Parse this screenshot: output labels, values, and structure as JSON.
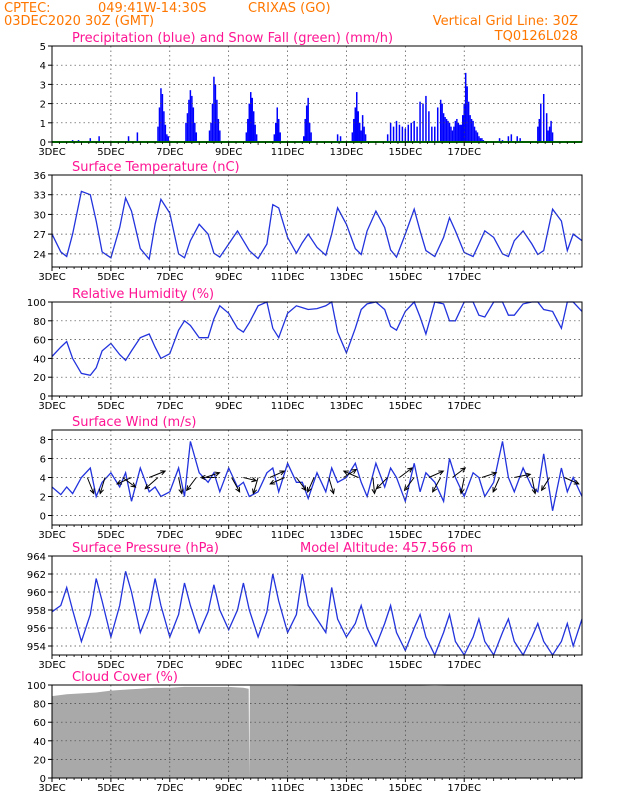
{
  "header": {
    "source": "CPTEC:",
    "coords": "049:41W-14:30S",
    "station": "CRIXAS (GO)",
    "run": "03DEC2020 30Z (GMT)",
    "grid_note": "Vertical Grid Line: 30Z",
    "model_id": "TQ0126L028"
  },
  "colors": {
    "header": "#ff7700",
    "panel_title": "#ff1493",
    "precip": "#0000ff",
    "snow": "#00bb00",
    "line": "#2233dd",
    "cloud": "#a9a9a9"
  },
  "x_ticks": [
    "3DEC",
    "5DEC",
    "7DEC",
    "9DEC",
    "11DEC",
    "13DEC",
    "15DEC",
    "17DEC"
  ],
  "chart_data": [
    {
      "id": "precip",
      "type": "bar",
      "title": "Precipitation (blue) and Snow Fall (green) (mm/h)",
      "ylim": [
        0,
        5
      ],
      "yticks": [
        0,
        1,
        2,
        3,
        4,
        5
      ],
      "x_unit": "days since 03DEC2020 30Z",
      "x": [
        0.7,
        0.9,
        1.3,
        1.6,
        2.6,
        2.9,
        3.6,
        3.65,
        3.7,
        3.75,
        3.8,
        3.85,
        3.9,
        3.95,
        4.55,
        4.6,
        4.65,
        4.7,
        4.75,
        4.8,
        4.85,
        4.9,
        5.35,
        5.4,
        5.45,
        5.5,
        5.55,
        5.6,
        5.65,
        5.7,
        6.6,
        6.65,
        6.7,
        6.75,
        6.8,
        6.85,
        6.9,
        6.95,
        7.55,
        7.6,
        7.65,
        7.7,
        7.75,
        8.55,
        8.6,
        8.65,
        8.7,
        8.75,
        8.8,
        9.7,
        9.8,
        10.2,
        10.25,
        10.3,
        10.35,
        10.4,
        10.45,
        10.5,
        10.55,
        10.6,
        10.65,
        11.4,
        11.5,
        11.6,
        11.7,
        11.8,
        11.9,
        12.0,
        12.1,
        12.2,
        12.3,
        12.4,
        12.5,
        12.6,
        12.7,
        12.8,
        12.9,
        13.0,
        13.1,
        13.2,
        13.25,
        13.3,
        13.35,
        13.4,
        13.45,
        13.5,
        13.55,
        13.6,
        13.65,
        13.7,
        13.75,
        13.8,
        13.85,
        13.9,
        13.95,
        14.0,
        14.05,
        14.1,
        14.15,
        14.2,
        14.25,
        14.3,
        14.35,
        14.4,
        14.45,
        14.5,
        14.55,
        14.6,
        14.65,
        15.2,
        15.3,
        15.5,
        15.6,
        15.8,
        15.9,
        16.5,
        16.55,
        16.6,
        16.7,
        16.8,
        16.85,
        16.9,
        16.95,
        17.0
      ],
      "values": [
        0.1,
        0.1,
        0.2,
        0.3,
        0.3,
        0.5,
        0.8,
        1.8,
        2.8,
        2.5,
        1.6,
        0.9,
        0.4,
        0.3,
        1.0,
        1.5,
        2.2,
        2.7,
        2.4,
        1.8,
        1.0,
        0.5,
        0.6,
        1.0,
        2.0,
        3.4,
        3.0,
        2.2,
        1.2,
        0.6,
        0.5,
        1.2,
        2.0,
        2.6,
        2.3,
        1.6,
        0.9,
        0.4,
        0.4,
        1.0,
        1.8,
        1.2,
        0.5,
        0.3,
        1.2,
        1.9,
        2.3,
        1.0,
        0.5,
        0.4,
        0.3,
        0.5,
        1.2,
        1.8,
        2.6,
        1.6,
        1.0,
        0.6,
        1.4,
        0.8,
        0.4,
        0.4,
        1.0,
        0.8,
        1.1,
        0.9,
        0.8,
        0.7,
        0.9,
        1.0,
        1.1,
        0.8,
        2.1,
        2.0,
        2.4,
        1.6,
        0.8,
        0.8,
        1.8,
        2.2,
        2.0,
        1.5,
        1.3,
        1.2,
        1.1,
        1.0,
        0.8,
        0.6,
        0.8,
        1.1,
        1.2,
        1.0,
        0.9,
        0.9,
        1.4,
        2.0,
        3.6,
        2.9,
        2.1,
        1.4,
        1.2,
        1.1,
        0.8,
        0.6,
        0.5,
        0.3,
        0.2,
        0.2,
        0.1,
        0.2,
        0.1,
        0.3,
        0.4,
        0.3,
        0.2,
        0.8,
        1.2,
        2.0,
        2.5,
        1.5,
        0.6,
        0.8,
        1.1,
        0.5
      ],
      "snow": 0
    },
    {
      "id": "temp",
      "type": "line",
      "title": "Surface Temperature (nC)",
      "ylim": [
        22,
        36
      ],
      "yticks": [
        24,
        27,
        30,
        33,
        36
      ],
      "x": [
        0.0,
        0.3,
        0.5,
        0.7,
        1.0,
        1.3,
        1.5,
        1.7,
        2.0,
        2.3,
        2.5,
        2.7,
        3.0,
        3.3,
        3.5,
        3.7,
        4.0,
        4.3,
        4.5,
        4.7,
        5.0,
        5.3,
        5.5,
        5.7,
        6.0,
        6.3,
        6.5,
        6.7,
        7.0,
        7.3,
        7.5,
        7.7,
        8.0,
        8.3,
        8.5,
        8.7,
        9.0,
        9.3,
        9.5,
        9.7,
        10.0,
        10.3,
        10.5,
        10.7,
        11.0,
        11.3,
        11.5,
        11.7,
        12.0,
        12.3,
        12.5,
        12.7,
        13.0,
        13.3,
        13.5,
        13.7,
        14.0,
        14.3,
        14.5,
        14.7,
        15.0,
        15.3,
        15.5,
        15.7,
        16.0,
        16.3,
        16.5,
        16.7,
        17.0,
        17.3,
        17.5,
        17.7,
        18.0
      ],
      "y": [
        27.0,
        24.3,
        23.6,
        27.0,
        33.5,
        33.0,
        29.0,
        24.3,
        23.4,
        28.0,
        32.5,
        30.5,
        24.8,
        23.2,
        28.5,
        32.3,
        30.2,
        24.0,
        23.4,
        26.0,
        28.5,
        27.0,
        24.1,
        23.5,
        25.5,
        27.5,
        26.0,
        24.5,
        23.3,
        25.5,
        31.5,
        31.0,
        26.5,
        24.1,
        25.7,
        27.0,
        25.0,
        23.8,
        27.0,
        31.0,
        28.5,
        24.8,
        23.9,
        27.5,
        30.5,
        28.0,
        24.6,
        23.5,
        27.0,
        30.8,
        27.5,
        24.5,
        23.6,
        26.5,
        29.5,
        27.5,
        24.2,
        23.6,
        25.5,
        27.5,
        26.5,
        24.0,
        23.6,
        26.0,
        27.5,
        25.5,
        23.9,
        24.5,
        30.8,
        29.0,
        24.5,
        27.0,
        26.0
      ]
    },
    {
      "id": "rh",
      "type": "line",
      "title": "Relative Humidity (%)",
      "ylim": [
        0,
        100
      ],
      "yticks": [
        0,
        20,
        40,
        60,
        80,
        100
      ],
      "x": [
        0.0,
        0.3,
        0.5,
        0.7,
        1.0,
        1.3,
        1.5,
        1.7,
        2.0,
        2.3,
        2.5,
        2.7,
        3.0,
        3.3,
        3.5,
        3.7,
        4.0,
        4.3,
        4.5,
        4.7,
        5.0,
        5.3,
        5.5,
        5.7,
        6.0,
        6.3,
        6.5,
        6.7,
        7.0,
        7.3,
        7.5,
        7.7,
        8.0,
        8.3,
        8.5,
        8.7,
        9.0,
        9.3,
        9.5,
        9.7,
        10.0,
        10.3,
        10.5,
        10.7,
        11.0,
        11.3,
        11.5,
        11.7,
        12.0,
        12.3,
        12.5,
        12.7,
        13.0,
        13.3,
        13.5,
        13.7,
        14.0,
        14.3,
        14.5,
        14.7,
        15.0,
        15.3,
        15.5,
        15.7,
        16.0,
        16.3,
        16.5,
        16.7,
        17.0,
        17.3,
        17.5,
        17.7,
        18.0
      ],
      "y": [
        42,
        52,
        58,
        40,
        24,
        22,
        30,
        48,
        56,
        44,
        38,
        48,
        62,
        66,
        52,
        40,
        45,
        70,
        80,
        75,
        62,
        62,
        82,
        96,
        88,
        72,
        68,
        78,
        96,
        100,
        72,
        62,
        88,
        96,
        94,
        92,
        93,
        96,
        100,
        68,
        46,
        72,
        92,
        98,
        100,
        92,
        74,
        70,
        90,
        100,
        84,
        66,
        100,
        98,
        80,
        80,
        100,
        100,
        86,
        84,
        100,
        100,
        86,
        86,
        98,
        100,
        100,
        92,
        90,
        72,
        100,
        100,
        90
      ]
    },
    {
      "id": "wind",
      "type": "line",
      "title": "Surface Wind (m/s)",
      "ylim": [
        -1,
        9
      ],
      "yticks": [
        0,
        2,
        4,
        6,
        8
      ],
      "x": [
        0.0,
        0.3,
        0.5,
        0.7,
        1.0,
        1.3,
        1.5,
        1.7,
        2.0,
        2.3,
        2.5,
        2.7,
        3.0,
        3.3,
        3.5,
        3.7,
        4.0,
        4.3,
        4.5,
        4.7,
        5.0,
        5.3,
        5.5,
        5.7,
        6.0,
        6.3,
        6.5,
        6.7,
        7.0,
        7.3,
        7.5,
        7.7,
        8.0,
        8.3,
        8.5,
        8.7,
        9.0,
        9.3,
        9.5,
        9.7,
        10.0,
        10.3,
        10.5,
        10.7,
        11.0,
        11.3,
        11.5,
        11.7,
        12.0,
        12.3,
        12.5,
        12.7,
        13.0,
        13.3,
        13.5,
        13.7,
        14.0,
        14.3,
        14.5,
        14.7,
        15.0,
        15.3,
        15.5,
        15.7,
        16.0,
        16.3,
        16.5,
        16.7,
        17.0,
        17.3,
        17.5,
        17.7,
        18.0
      ],
      "y": [
        3.0,
        2.2,
        3.0,
        2.3,
        4.0,
        5.0,
        2.0,
        3.5,
        4.5,
        3.0,
        4.5,
        1.5,
        5.0,
        2.5,
        3.0,
        2.0,
        2.5,
        5.0,
        2.0,
        7.8,
        4.5,
        3.5,
        4.5,
        2.5,
        5.0,
        3.0,
        3.5,
        2.0,
        2.5,
        4.5,
        5.0,
        2.5,
        5.5,
        3.5,
        3.5,
        1.8,
        4.5,
        2.5,
        5.0,
        3.5,
        4.0,
        5.5,
        3.5,
        2.0,
        5.5,
        3.0,
        5.0,
        4.0,
        1.5,
        5.5,
        2.5,
        4.5,
        3.5,
        1.5,
        6.0,
        4.0,
        2.0,
        4.5,
        4.0,
        2.0,
        3.5,
        7.8,
        4.0,
        2.5,
        5.0,
        3.0,
        2.5,
        6.5,
        0.5,
        5.0,
        2.5,
        4.0,
        2.0
      ],
      "arrows": [
        {
          "x": 1.2,
          "u": 0.4,
          "v": -1.0
        },
        {
          "x": 1.8,
          "u": -0.3,
          "v": -1.0
        },
        {
          "x": 2.4,
          "u": 0.8,
          "v": -0.6
        },
        {
          "x": 2.7,
          "u": -0.9,
          "v": -0.4
        },
        {
          "x": 3.3,
          "u": 1.0,
          "v": 0.4
        },
        {
          "x": 3.6,
          "u": -0.8,
          "v": -0.7
        },
        {
          "x": 4.3,
          "u": 0.2,
          "v": -1.0
        },
        {
          "x": 4.9,
          "u": -0.6,
          "v": -0.8
        },
        {
          "x": 5.2,
          "u": 0.9,
          "v": 0.3
        },
        {
          "x": 5.6,
          "u": -1.0,
          "v": 0.0
        },
        {
          "x": 6.1,
          "u": 0.5,
          "v": -0.9
        },
        {
          "x": 6.5,
          "u": 0.8,
          "v": -0.2
        },
        {
          "x": 7.0,
          "u": -0.3,
          "v": -1.0
        },
        {
          "x": 7.4,
          "u": 0.9,
          "v": 0.4
        },
        {
          "x": 7.9,
          "u": -0.9,
          "v": -0.4
        },
        {
          "x": 8.3,
          "u": 0.6,
          "v": -0.8
        },
        {
          "x": 8.9,
          "u": -0.4,
          "v": -0.9
        },
        {
          "x": 9.4,
          "u": 0.3,
          "v": -1.0
        },
        {
          "x": 9.9,
          "u": 0.8,
          "v": 0.5
        },
        {
          "x": 10.4,
          "u": -0.9,
          "v": 0.4
        },
        {
          "x": 10.9,
          "u": 0.1,
          "v": -1.0
        },
        {
          "x": 11.4,
          "u": -0.7,
          "v": -0.7
        },
        {
          "x": 11.8,
          "u": 0.8,
          "v": 0.6
        },
        {
          "x": 12.3,
          "u": -0.6,
          "v": -0.8
        },
        {
          "x": 12.8,
          "u": 0.9,
          "v": 0.4
        },
        {
          "x": 13.2,
          "u": -0.5,
          "v": -0.9
        },
        {
          "x": 13.6,
          "u": 0.8,
          "v": 0.6
        },
        {
          "x": 14.0,
          "u": -0.2,
          "v": -1.0
        },
        {
          "x": 14.6,
          "u": 0.9,
          "v": 0.3
        },
        {
          "x": 15.2,
          "u": -0.4,
          "v": -0.9
        },
        {
          "x": 15.7,
          "u": 1.0,
          "v": 0.2
        },
        {
          "x": 16.3,
          "u": 0.2,
          "v": -1.0
        },
        {
          "x": 16.9,
          "u": -0.5,
          "v": -0.8
        },
        {
          "x": 17.4,
          "u": 0.9,
          "v": -0.4
        }
      ]
    },
    {
      "id": "pres",
      "type": "line",
      "title": "Surface Pressure (hPa)",
      "annotation": "Model Altitude: 457.566 m",
      "ylim": [
        953,
        964
      ],
      "yticks": [
        954,
        956,
        958,
        960,
        962,
        964
      ],
      "x": [
        0.0,
        0.3,
        0.5,
        0.7,
        1.0,
        1.3,
        1.5,
        1.7,
        2.0,
        2.3,
        2.5,
        2.7,
        3.0,
        3.3,
        3.5,
        3.7,
        4.0,
        4.3,
        4.5,
        4.7,
        5.0,
        5.3,
        5.5,
        5.7,
        6.0,
        6.3,
        6.5,
        6.7,
        7.0,
        7.3,
        7.5,
        7.7,
        8.0,
        8.3,
        8.5,
        8.7,
        9.0,
        9.3,
        9.5,
        9.7,
        10.0,
        10.3,
        10.5,
        10.7,
        11.0,
        11.3,
        11.5,
        11.7,
        12.0,
        12.3,
        12.5,
        12.7,
        13.0,
        13.3,
        13.5,
        13.7,
        14.0,
        14.3,
        14.5,
        14.7,
        15.0,
        15.3,
        15.5,
        15.7,
        16.0,
        16.3,
        16.5,
        16.7,
        17.0,
        17.3,
        17.5,
        17.7,
        18.0
      ],
      "y": [
        957.8,
        958.5,
        960.5,
        958.0,
        954.5,
        957.5,
        961.5,
        959.0,
        955.0,
        958.5,
        962.3,
        960.0,
        955.5,
        958.0,
        961.5,
        958.5,
        955.0,
        957.5,
        961.0,
        958.5,
        955.5,
        957.8,
        960.8,
        958.0,
        955.8,
        958.0,
        961.0,
        958.0,
        955.0,
        957.8,
        962.0,
        959.0,
        955.5,
        957.5,
        962.0,
        958.5,
        957.0,
        955.5,
        960.5,
        957.0,
        955.0,
        956.5,
        958.5,
        956.0,
        954.0,
        956.5,
        958.5,
        955.5,
        953.5,
        956.0,
        957.5,
        955.0,
        953.0,
        955.5,
        957.5,
        954.5,
        953.0,
        955.0,
        957.0,
        954.5,
        953.0,
        955.5,
        957.0,
        954.5,
        953.0,
        955.0,
        956.5,
        954.5,
        953.0,
        954.5,
        956.5,
        954.0,
        957.0
      ]
    },
    {
      "id": "cloud",
      "type": "area",
      "title": "Cloud Cover (%)",
      "ylim": [
        0,
        100
      ],
      "yticks": [
        0,
        20,
        40,
        60,
        80,
        100
      ],
      "x": [
        0.0,
        0.5,
        1.0,
        1.5,
        2.0,
        2.5,
        3.0,
        3.5,
        4.0,
        4.5,
        5.0,
        5.5,
        6.0,
        6.5,
        6.68,
        6.7,
        6.72,
        7.0,
        8.0,
        9.0,
        10.0,
        11.0,
        12.0,
        13.0,
        14.0,
        15.0,
        16.0,
        17.0,
        18.0
      ],
      "y": [
        88,
        90,
        91,
        92,
        94,
        95,
        96,
        97,
        97,
        98,
        98,
        98,
        98,
        97,
        96,
        0,
        99,
        99,
        99,
        100,
        100,
        100,
        100,
        99,
        100,
        100,
        100,
        100,
        100
      ]
    }
  ]
}
